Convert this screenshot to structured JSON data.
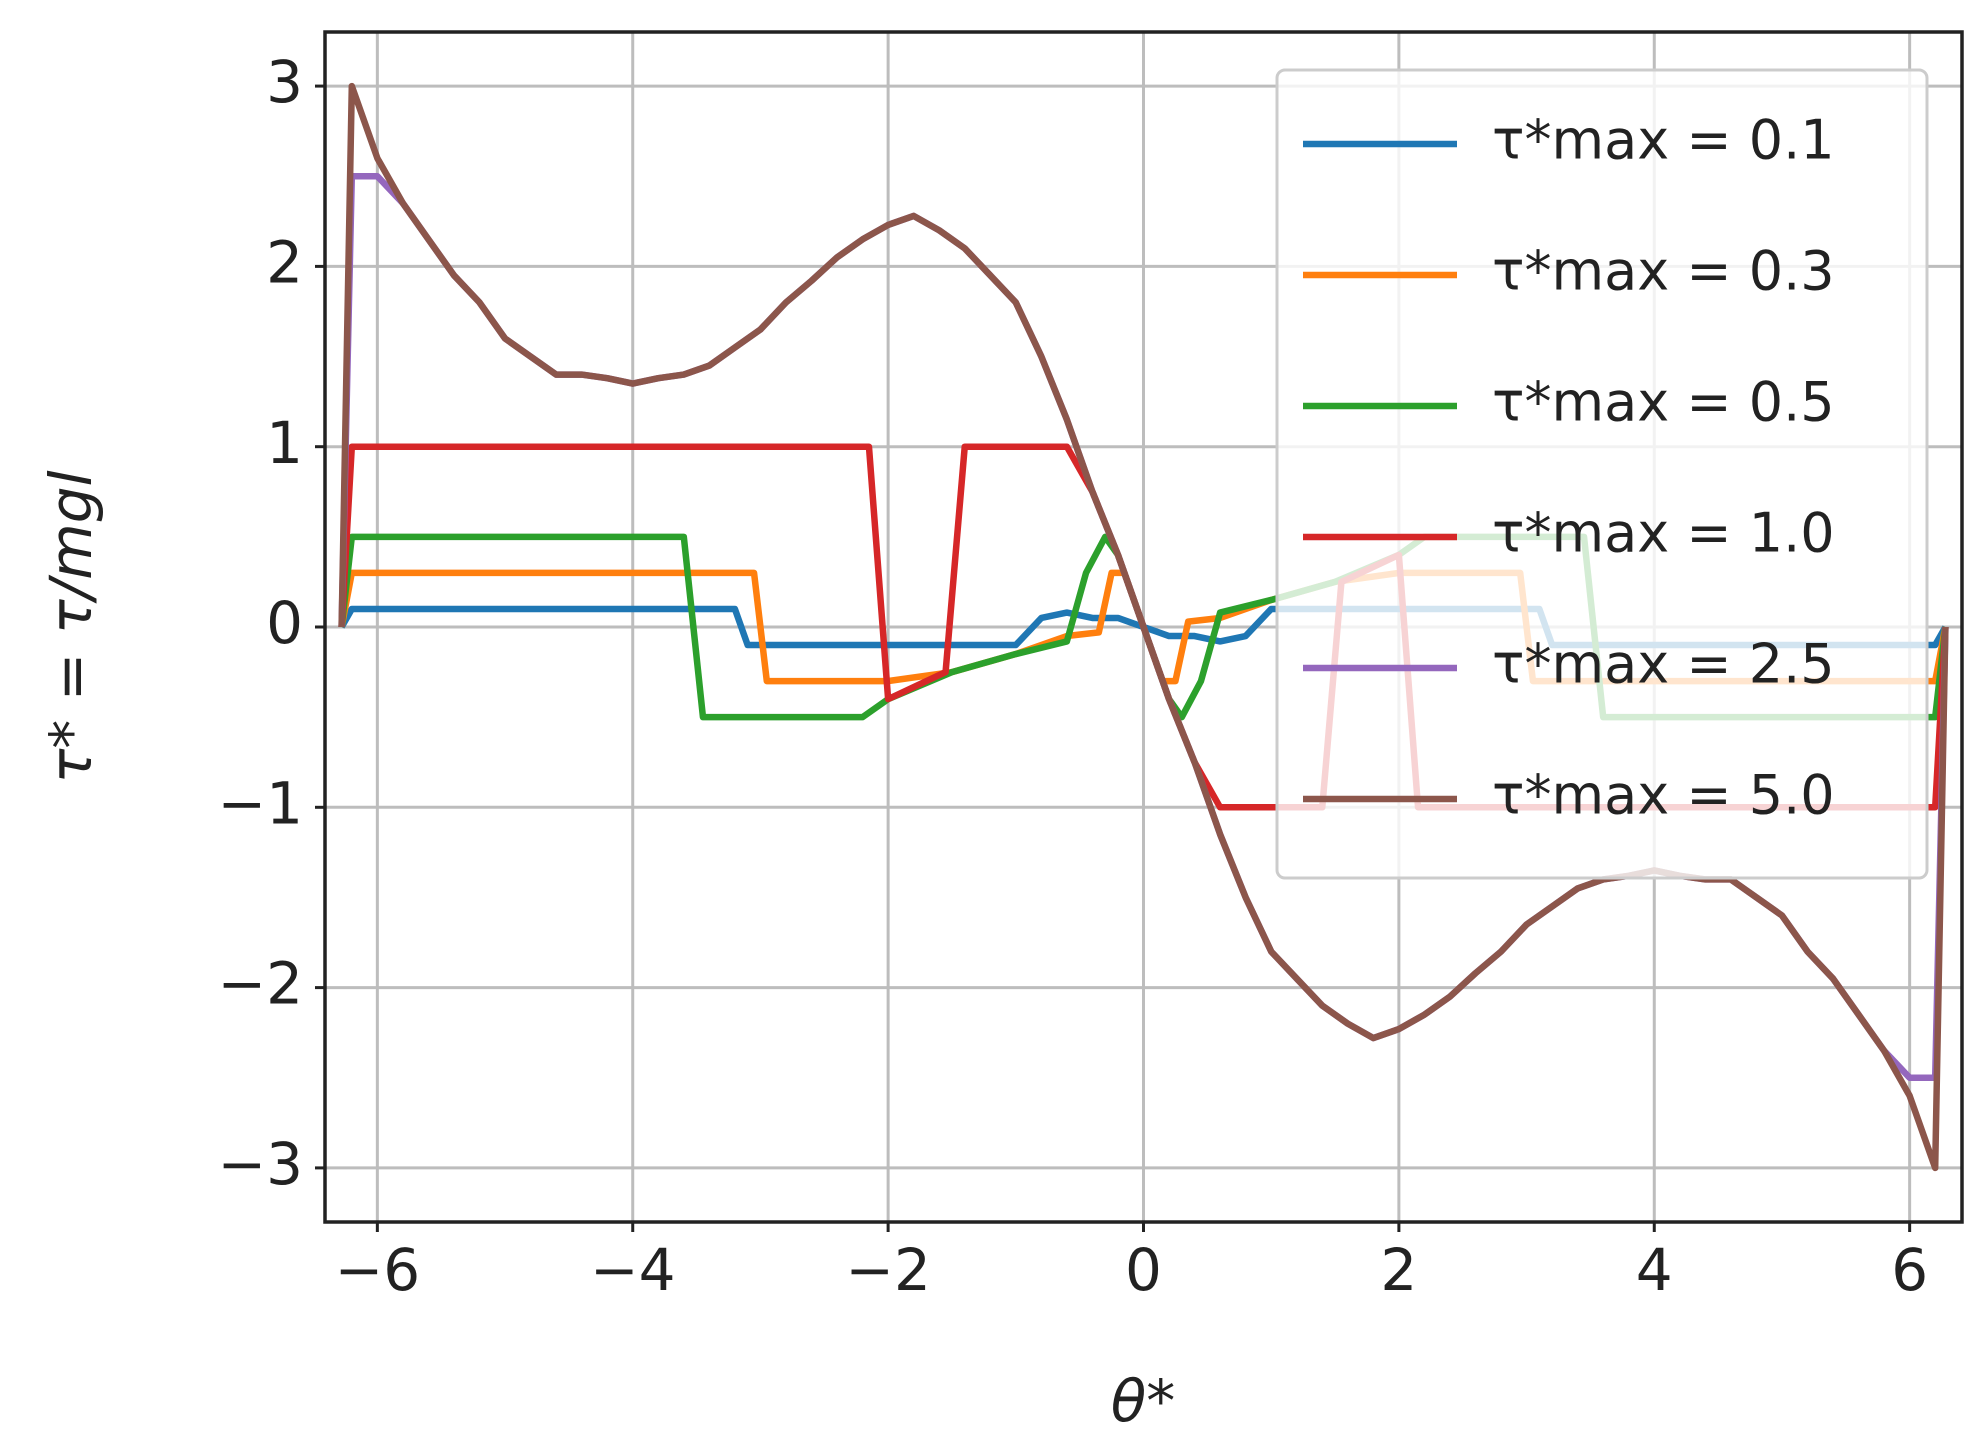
{
  "chart_data": {
    "type": "line",
    "xlabel": "θ*",
    "ylabel": "τ* = τ/mgl",
    "xlim": [
      -6.41,
      6.41
    ],
    "ylim": [
      -3.3,
      3.3
    ],
    "xticks": [
      {
        "value": -6,
        "label": "−6"
      },
      {
        "value": -4,
        "label": "−4"
      },
      {
        "value": -2,
        "label": "−2"
      },
      0,
      2,
      4,
      6
    ],
    "yticks": [
      {
        "value": -3,
        "label": "−3"
      },
      {
        "value": -2,
        "label": "−2"
      },
      {
        "value": -1,
        "label": "−1"
      },
      0,
      1,
      2,
      3
    ],
    "grid": true,
    "legend": "upper right",
    "series": [
      {
        "name": "τ*max = 0.1",
        "color": "#1f77b4",
        "x": [
          -6.28,
          -6.2,
          -3.2,
          -3.1,
          -1.0,
          -0.8,
          -0.6,
          -0.4,
          -0.2,
          0,
          0.2,
          0.4,
          0.6,
          0.8,
          1.0,
          3.1,
          3.2,
          6.2,
          6.28
        ],
        "values": [
          0,
          0.1,
          0.1,
          -0.1,
          -0.1,
          0.05,
          0.08,
          0.05,
          0.05,
          0,
          -0.05,
          -0.05,
          -0.08,
          -0.05,
          0.1,
          0.1,
          -0.1,
          -0.1,
          0
        ]
      },
      {
        "name": "τ*max = 0.3",
        "color": "#ff7f0e",
        "x": [
          -6.28,
          -6.2,
          -3.05,
          -2.95,
          -2.2,
          -2.0,
          -1.5,
          -1.0,
          -0.6,
          -0.35,
          -0.25,
          -0.15,
          0,
          0.15,
          0.25,
          0.35,
          0.6,
          1.0,
          1.5,
          2.0,
          2.2,
          2.95,
          3.05,
          6.2,
          6.28
        ],
        "values": [
          0,
          0.3,
          0.3,
          -0.3,
          -0.3,
          -0.3,
          -0.25,
          -0.15,
          -0.05,
          -0.03,
          0.3,
          0.3,
          0,
          -0.3,
          -0.3,
          0.03,
          0.05,
          0.15,
          0.25,
          0.3,
          0.3,
          0.3,
          -0.3,
          -0.3,
          0
        ]
      },
      {
        "name": "τ*max = 0.5",
        "color": "#2ca02c",
        "x": [
          -6.28,
          -6.2,
          -3.6,
          -3.45,
          -2.2,
          -2.0,
          -1.5,
          -1.0,
          -0.6,
          -0.45,
          -0.3,
          -0.2,
          0,
          0.2,
          0.3,
          0.45,
          0.6,
          1.0,
          1.5,
          2.0,
          2.2,
          3.45,
          3.6,
          6.2,
          6.28
        ],
        "values": [
          0,
          0.5,
          0.5,
          -0.5,
          -0.5,
          -0.4,
          -0.25,
          -0.15,
          -0.08,
          0.3,
          0.5,
          0.4,
          0,
          -0.4,
          -0.5,
          -0.3,
          0.08,
          0.15,
          0.25,
          0.4,
          0.5,
          0.5,
          -0.5,
          -0.5,
          0
        ]
      },
      {
        "name": "τ*max = 1.0",
        "color": "#d62728",
        "x": [
          -6.28,
          -6.2,
          -2.15,
          -2.0,
          -1.55,
          -1.4,
          -0.6,
          -0.4,
          -0.2,
          0,
          0.2,
          0.4,
          0.6,
          1.4,
          1.55,
          2.0,
          2.15,
          6.2,
          6.28
        ],
        "values": [
          0,
          1,
          1,
          -0.4,
          -0.25,
          1,
          1,
          0.75,
          0.4,
          0,
          -0.4,
          -0.75,
          -1,
          -1,
          0.25,
          0.4,
          -1,
          -1,
          0
        ]
      },
      {
        "name": "τ*max = 2.5",
        "color": "#9467bd",
        "x": [
          -6.28,
          -6.2,
          -6.0,
          -5.8,
          -5.6,
          -5.4,
          -5.2,
          -5.0,
          -4.8,
          -4.6,
          -4.4,
          -4.2,
          -4.0,
          -3.8,
          -3.6,
          -3.4,
          -3.2,
          -3.0,
          -2.8,
          -2.6,
          -2.4,
          -2.2,
          -2.0,
          -1.8,
          -1.6,
          -1.4,
          -1.2,
          -1.0,
          -0.8,
          -0.6,
          -0.4,
          -0.2,
          0,
          0.2,
          0.4,
          0.6,
          0.8,
          1.0,
          1.2,
          1.4,
          1.6,
          1.8,
          2.0,
          2.2,
          2.4,
          2.6,
          2.8,
          3.0,
          3.2,
          3.4,
          3.6,
          3.8,
          4.0,
          4.2,
          4.4,
          4.6,
          4.8,
          5.0,
          5.2,
          5.4,
          5.6,
          5.8,
          6.0,
          6.2,
          6.28
        ],
        "values": [
          0,
          2.5,
          2.5,
          2.35,
          2.15,
          1.95,
          1.8,
          1.6,
          1.5,
          1.4,
          1.4,
          1.38,
          1.35,
          1.38,
          1.4,
          1.45,
          1.55,
          1.65,
          1.8,
          1.92,
          2.05,
          2.15,
          2.23,
          2.28,
          2.2,
          2.1,
          1.95,
          1.8,
          1.5,
          1.15,
          0.75,
          0.4,
          0,
          -0.4,
          -0.75,
          -1.15,
          -1.5,
          -1.8,
          -1.95,
          -2.1,
          -2.2,
          -2.28,
          -2.23,
          -2.15,
          -2.05,
          -1.92,
          -1.8,
          -1.65,
          -1.55,
          -1.45,
          -1.4,
          -1.38,
          -1.35,
          -1.38,
          -1.4,
          -1.4,
          -1.5,
          -1.6,
          -1.8,
          -1.95,
          -2.15,
          -2.35,
          -2.5,
          -2.5,
          0
        ]
      },
      {
        "name": "τ*max = 5.0",
        "color": "#8c564b",
        "x": [
          -6.28,
          -6.2,
          -6.0,
          -5.8,
          -5.6,
          -5.4,
          -5.2,
          -5.0,
          -4.8,
          -4.6,
          -4.4,
          -4.2,
          -4.0,
          -3.8,
          -3.6,
          -3.4,
          -3.2,
          -3.0,
          -2.8,
          -2.6,
          -2.4,
          -2.2,
          -2.0,
          -1.8,
          -1.6,
          -1.4,
          -1.2,
          -1.0,
          -0.8,
          -0.6,
          -0.4,
          -0.2,
          0,
          0.2,
          0.4,
          0.6,
          0.8,
          1.0,
          1.2,
          1.4,
          1.6,
          1.8,
          2.0,
          2.2,
          2.4,
          2.6,
          2.8,
          3.0,
          3.2,
          3.4,
          3.6,
          3.8,
          4.0,
          4.2,
          4.4,
          4.6,
          4.8,
          5.0,
          5.2,
          5.4,
          5.6,
          5.8,
          6.0,
          6.2,
          6.28
        ],
        "values": [
          0,
          3.0,
          2.6,
          2.35,
          2.15,
          1.95,
          1.8,
          1.6,
          1.5,
          1.4,
          1.4,
          1.38,
          1.35,
          1.38,
          1.4,
          1.45,
          1.55,
          1.65,
          1.8,
          1.92,
          2.05,
          2.15,
          2.23,
          2.28,
          2.2,
          2.1,
          1.95,
          1.8,
          1.5,
          1.15,
          0.75,
          0.4,
          0,
          -0.4,
          -0.75,
          -1.15,
          -1.5,
          -1.8,
          -1.95,
          -2.1,
          -2.2,
          -2.28,
          -2.23,
          -2.15,
          -2.05,
          -1.92,
          -1.8,
          -1.65,
          -1.55,
          -1.45,
          -1.4,
          -1.38,
          -1.35,
          -1.38,
          -1.4,
          -1.4,
          -1.5,
          -1.6,
          -1.8,
          -1.95,
          -2.15,
          -2.35,
          -2.6,
          -3.0,
          0
        ]
      }
    ]
  }
}
